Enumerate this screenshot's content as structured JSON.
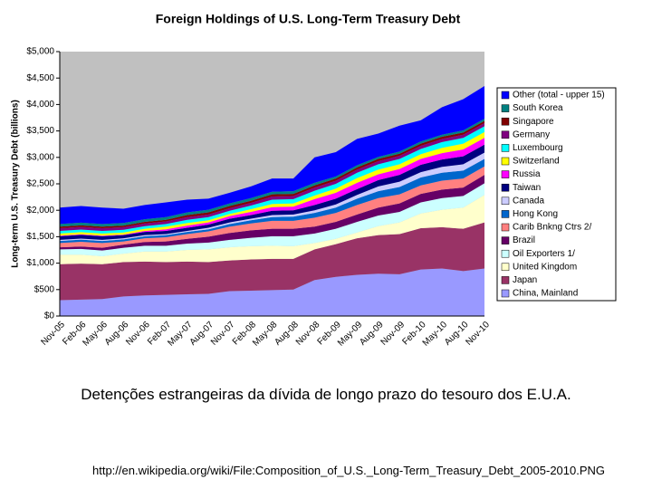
{
  "chart_data": {
    "type": "stacked_area",
    "title": "Foreign Holdings of U.S. Long-Term Treasury Debt",
    "y_label": "Long-term U.S. Treasury Debt (billions)",
    "categories": [
      "Nov-05",
      "Feb-06",
      "May-06",
      "Aug-06",
      "Nov-06",
      "Feb-07",
      "May-07",
      "Aug-07",
      "Nov-07",
      "Feb-08",
      "May-08",
      "Aug-08",
      "Nov-08",
      "Feb-09",
      "May-09",
      "Aug-09",
      "Nov-09",
      "Feb-10",
      "May-10",
      "Aug-10",
      "Nov-10"
    ],
    "ylim": [
      0,
      5000
    ],
    "yticks": [
      {
        "value": 0,
        "label": "$0"
      },
      {
        "value": 500,
        "label": "$500"
      },
      {
        "value": 1000,
        "label": "$1,000"
      },
      {
        "value": 1500,
        "label": "$1,500"
      },
      {
        "value": 2000,
        "label": "$2,000"
      },
      {
        "value": 2500,
        "label": "$2,500"
      },
      {
        "value": 3000,
        "label": "$3,000"
      },
      {
        "value": 3500,
        "label": "$3,500"
      },
      {
        "value": 4000,
        "label": "$4,000"
      },
      {
        "value": 4500,
        "label": "$4,500"
      },
      {
        "value": 5000,
        "label": "$5,000"
      }
    ],
    "legend": "right",
    "series": [
      {
        "name": "China, Mainland",
        "color": "#9999ff",
        "values": [
          300,
          310,
          320,
          370,
          390,
          400,
          410,
          420,
          470,
          480,
          490,
          500,
          680,
          740,
          780,
          800,
          790,
          880,
          900,
          850,
          900
        ]
      },
      {
        "name": "Japan",
        "color": "#993366",
        "values": [
          680,
          680,
          660,
          650,
          640,
          620,
          620,
          600,
          580,
          590,
          590,
          580,
          580,
          620,
          690,
          730,
          760,
          780,
          780,
          800,
          870
        ]
      },
      {
        "name": "United Kingdom",
        "color": "#ffffcc",
        "values": [
          180,
          170,
          150,
          160,
          190,
          200,
          220,
          240,
          250,
          250,
          250,
          240,
          120,
          100,
          110,
          170,
          220,
          280,
          330,
          400,
          520
        ]
      },
      {
        "name": "Oil Exporters 1/",
        "color": "#ccffff",
        "values": [
          100,
          110,
          110,
          110,
          110,
          110,
          120,
          130,
          140,
          160,
          180,
          190,
          180,
          190,
          200,
          200,
          200,
          210,
          220,
          220,
          220
        ]
      },
      {
        "name": "Brazil",
        "color": "#660066",
        "values": [
          40,
          45,
          50,
          60,
          70,
          80,
          90,
          110,
          130,
          140,
          140,
          140,
          130,
          130,
          140,
          150,
          160,
          160,
          160,
          160,
          160
        ]
      },
      {
        "name": "Carib Bnkng Ctrs 2/",
        "color": "#ff8080",
        "values": [
          80,
          90,
          90,
          60,
          70,
          80,
          90,
          100,
          120,
          130,
          150,
          150,
          170,
          170,
          180,
          180,
          170,
          160,
          170,
          170,
          160
        ]
      },
      {
        "name": "Hong Kong",
        "color": "#0066cc",
        "values": [
          40,
          40,
          40,
          40,
          40,
          40,
          40,
          40,
          50,
          60,
          70,
          80,
          90,
          100,
          120,
          130,
          140,
          150,
          150,
          150,
          140
        ]
      },
      {
        "name": "Canada",
        "color": "#ccccff",
        "values": [
          20,
          20,
          20,
          20,
          20,
          20,
          20,
          30,
          30,
          30,
          40,
          40,
          50,
          60,
          70,
          90,
          100,
          100,
          110,
          120,
          120
        ]
      },
      {
        "name": "Taiwan",
        "color": "#000080",
        "values": [
          70,
          70,
          70,
          60,
          60,
          60,
          60,
          60,
          70,
          70,
          80,
          80,
          100,
          110,
          110,
          120,
          130,
          140,
          140,
          150,
          150
        ]
      },
      {
        "name": "Russia",
        "color": "#ff00ff",
        "values": [
          10,
          10,
          10,
          10,
          20,
          30,
          40,
          40,
          50,
          60,
          70,
          70,
          110,
          110,
          120,
          110,
          110,
          110,
          120,
          130,
          130
        ]
      },
      {
        "name": "Switzerland",
        "color": "#ffff00",
        "values": [
          40,
          40,
          40,
          40,
          40,
          50,
          50,
          40,
          40,
          50,
          60,
          60,
          70,
          80,
          90,
          90,
          90,
          90,
          100,
          110,
          110
        ]
      },
      {
        "name": "Luxembourg",
        "color": "#00ffff",
        "values": [
          50,
          50,
          50,
          50,
          50,
          50,
          60,
          60,
          60,
          70,
          80,
          80,
          90,
          90,
          100,
          100,
          100,
          100,
          110,
          110,
          110
        ]
      },
      {
        "name": "Germany",
        "color": "#800080",
        "values": [
          50,
          50,
          50,
          50,
          50,
          50,
          50,
          50,
          50,
          50,
          60,
          60,
          60,
          60,
          60,
          60,
          60,
          60,
          60,
          60,
          60
        ]
      },
      {
        "name": "Singapore",
        "color": "#800000",
        "values": [
          30,
          30,
          30,
          30,
          30,
          30,
          40,
          40,
          40,
          40,
          40,
          40,
          40,
          40,
          40,
          40,
          40,
          40,
          40,
          40,
          40
        ]
      },
      {
        "name": "South Korea",
        "color": "#008080",
        "values": [
          50,
          50,
          50,
          50,
          50,
          50,
          50,
          50,
          50,
          50,
          50,
          50,
          50,
          40,
          40,
          40,
          40,
          40,
          40,
          40,
          40
        ]
      },
      {
        "name": "Other (total - upper 15)",
        "color": "#0000ff",
        "values": [
          310,
          315,
          310,
          270,
          270,
          280,
          240,
          210,
          200,
          220,
          250,
          240,
          480,
          460,
          500,
          440,
          490,
          400,
          520,
          590,
          620
        ]
      }
    ]
  },
  "caption": "Detenções estrangeiras da dívida de longo prazo do tesouro dos E.U.A.",
  "source": "http://en.wikipedia.org/wiki/File:Composition_of_U.S._Long-Term_Treasury_Debt_2005-2010.PNG"
}
